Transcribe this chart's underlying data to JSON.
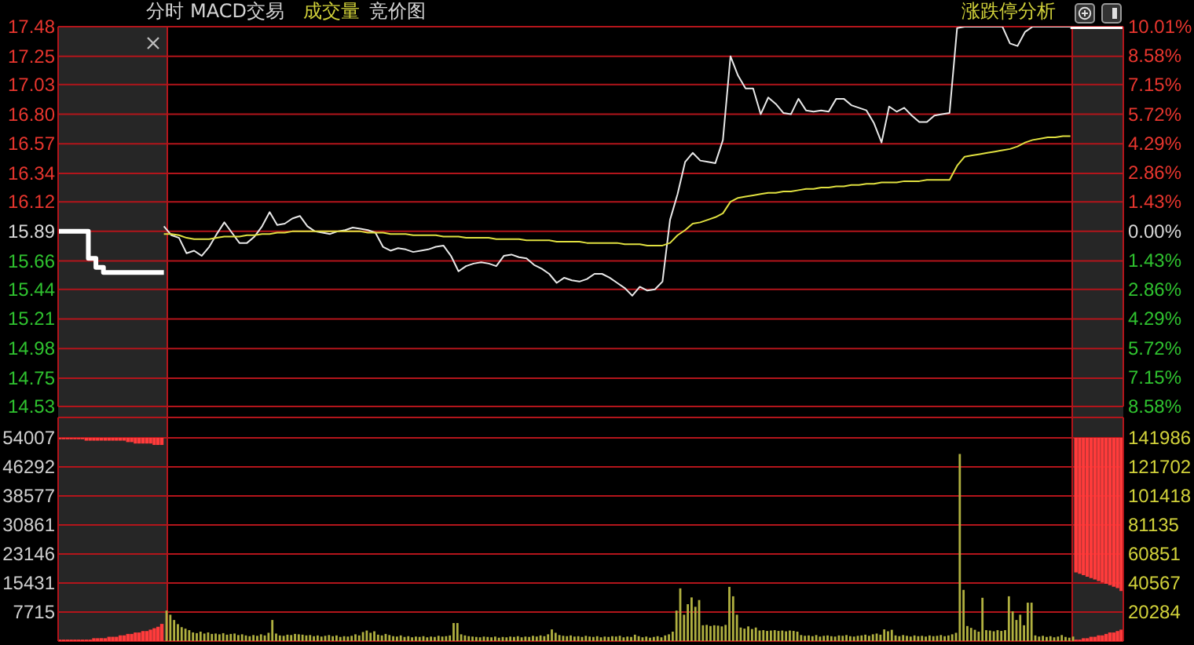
{
  "chart_data": [
    {
      "type": "line",
      "annotations": [
        "分时",
        "MACD交易",
        "成交量",
        "竞价图",
        "涨跌停分析"
      ],
      "categories": [
        null,
        null,
        null,
        null,
        null,
        null,
        null,
        null,
        null,
        null,
        null,
        null,
        null,
        null,
        null,
        null,
        null,
        null,
        null,
        null,
        null,
        null,
        null,
        null,
        null,
        null,
        null,
        null,
        null,
        null,
        null,
        null,
        null,
        null,
        null,
        null,
        null,
        null,
        null,
        null,
        null,
        null,
        null,
        null,
        null,
        null,
        null,
        null,
        null,
        null,
        null,
        null,
        null,
        null,
        null,
        null,
        null,
        null,
        null,
        null,
        null,
        null,
        null,
        null,
        null,
        null,
        null,
        null,
        null,
        null,
        null,
        null,
        null,
        null,
        null,
        null,
        null,
        null,
        null,
        null,
        null,
        null,
        null,
        null,
        null,
        null,
        null,
        null,
        null,
        null,
        null,
        null,
        null,
        null,
        null,
        null,
        null,
        null,
        null,
        null,
        null,
        null,
        null,
        null,
        null,
        null,
        null,
        null,
        null,
        null,
        null,
        null,
        null,
        null,
        null,
        null,
        null,
        null,
        null,
        null,
        null,
        null,
        null,
        null,
        null,
        null,
        null,
        null,
        null,
        null,
        null,
        null,
        null,
        null,
        null,
        null,
        null,
        null,
        null,
        null,
        null,
        null
      ],
      "ylim": [
        14.53,
        17.48
      ],
      "yticks": [
        14.53,
        14.75,
        14.98,
        15.21,
        15.44,
        15.66,
        15.89,
        16.12,
        16.34,
        16.57,
        {
          "value": 16.8,
          "label": "16.80"
        },
        17.03,
        17.25,
        17.48
      ],
      "y2lim": [
        -8.58,
        10.01
      ],
      "y2ticks": [
        {
          "value": -8.58,
          "label": "8.58%"
        },
        {
          "value": -7.15,
          "label": "7.15%"
        },
        {
          "value": -5.72,
          "label": "5.72%"
        },
        {
          "value": -4.29,
          "label": "4.29%"
        },
        {
          "value": -2.86,
          "label": "2.86%"
        },
        {
          "value": -1.43,
          "label": "1.43%"
        },
        {
          "value": 0,
          "label": "0.00%"
        },
        {
          "value": 1.43,
          "label": "1.43%"
        },
        {
          "value": 2.86,
          "label": "2.86%"
        },
        {
          "value": 4.29,
          "label": "4.29%"
        },
        {
          "value": 5.72,
          "label": "5.72%"
        },
        {
          "value": 7.15,
          "label": "7.15%"
        },
        {
          "value": 8.58,
          "label": "8.58%"
        },
        {
          "value": 10.01,
          "label": "10.01%"
        }
      ],
      "grid": "y",
      "tick_labels": "y",
      "series": [
        {
          "color": "#e8e8e8",
          "values": [
            null,
            null,
            null,
            null,
            null,
            null,
            null,
            null,
            null,
            null,
            null,
            null,
            null,
            null,
            15.93,
            15.86,
            15.84,
            15.72,
            15.74,
            15.7,
            15.77,
            15.87,
            15.96,
            15.88,
            15.8,
            15.8,
            15.85,
            15.93,
            16.04,
            15.94,
            15.95,
            15.99,
            16.01,
            15.93,
            15.89,
            15.88,
            15.87,
            15.89,
            15.9,
            15.92,
            15.91,
            15.9,
            15.88,
            15.77,
            15.74,
            15.76,
            15.75,
            15.73,
            15.74,
            15.75,
            15.77,
            15.78,
            15.7,
            15.58,
            15.62,
            15.64,
            15.65,
            15.64,
            15.62,
            15.7,
            15.71,
            15.69,
            15.68,
            15.63,
            15.6,
            15.56,
            15.49,
            15.53,
            15.51,
            15.5,
            15.52,
            15.56,
            15.56,
            15.53,
            15.49,
            15.45,
            15.39,
            15.46,
            15.43,
            15.44,
            15.5,
            15.98,
            16.18,
            16.43,
            16.5,
            16.44,
            16.43,
            16.42,
            16.6,
            17.25,
            17.1,
            17.0,
            17.0,
            16.8,
            16.93,
            16.88,
            16.81,
            16.8,
            16.92,
            16.83,
            16.82,
            16.83,
            16.82,
            16.92,
            16.92,
            16.87,
            16.85,
            16.83,
            16.73,
            16.58,
            16.86,
            16.82,
            16.85,
            16.79,
            16.74,
            16.74,
            16.79,
            16.8,
            16.81,
            17.47,
            17.48,
            17.48,
            17.48,
            17.48,
            17.48,
            17.48,
            17.35,
            17.33,
            17.44,
            17.48,
            17.48,
            17.48,
            17.48,
            17.48,
            17.48,
            null,
            null,
            null,
            null,
            null,
            null,
            null
          ]
        },
        {
          "color": "#e0e040",
          "values": [
            null,
            null,
            null,
            null,
            null,
            null,
            null,
            null,
            null,
            null,
            null,
            null,
            null,
            null,
            15.87,
            15.87,
            15.86,
            15.84,
            15.83,
            15.83,
            15.83,
            15.84,
            15.85,
            15.85,
            15.85,
            15.86,
            15.86,
            15.87,
            15.87,
            15.88,
            15.88,
            15.89,
            15.89,
            15.89,
            15.89,
            15.89,
            15.89,
            15.89,
            15.89,
            15.89,
            15.89,
            15.88,
            15.88,
            15.88,
            15.87,
            15.87,
            15.87,
            15.86,
            15.86,
            15.86,
            15.86,
            15.85,
            15.85,
            15.85,
            15.84,
            15.84,
            15.84,
            15.84,
            15.83,
            15.83,
            15.83,
            15.83,
            15.82,
            15.82,
            15.82,
            15.82,
            15.81,
            15.81,
            15.81,
            15.81,
            15.8,
            15.8,
            15.8,
            15.8,
            15.8,
            15.79,
            15.79,
            15.79,
            15.78,
            15.78,
            15.78,
            15.8,
            15.86,
            15.9,
            15.95,
            15.96,
            15.98,
            16.0,
            16.03,
            16.12,
            16.15,
            16.16,
            16.17,
            16.18,
            16.19,
            16.19,
            16.2,
            16.2,
            16.21,
            16.22,
            16.22,
            16.23,
            16.23,
            16.24,
            16.24,
            16.25,
            16.25,
            16.26,
            16.26,
            16.27,
            16.27,
            16.27,
            16.28,
            16.28,
            16.28,
            16.29,
            16.29,
            16.29,
            16.29,
            16.4,
            16.47,
            16.48,
            16.49,
            16.5,
            16.51,
            16.52,
            16.53,
            16.55,
            16.58,
            16.6,
            16.61,
            16.62,
            16.62,
            16.63,
            16.63,
            null,
            null,
            null,
            null,
            null,
            null,
            null
          ]
        },
        {
          "type": "step",
          "color": "#ffffff",
          "values": [
            15.89,
            15.89,
            15.89,
            15.89,
            15.68,
            15.61,
            15.57,
            15.57,
            15.57,
            15.57,
            15.57,
            15.57,
            15.57,
            15.57,
            15.57,
            null,
            null,
            null,
            null,
            null,
            null,
            null,
            null,
            null,
            null,
            null,
            null,
            null,
            null,
            null,
            null,
            null,
            null,
            null,
            null,
            null,
            null,
            null,
            null,
            null,
            null,
            null,
            null,
            null,
            null,
            null,
            null,
            null,
            null,
            null,
            null,
            null,
            null,
            null,
            null,
            null,
            null,
            null,
            null,
            null,
            null,
            null,
            null,
            null,
            null,
            null,
            null,
            null,
            null,
            null,
            null,
            null,
            null,
            null,
            null,
            null,
            null,
            null,
            null,
            null,
            null,
            null,
            null,
            null,
            null,
            null,
            null,
            null,
            null,
            null,
            null,
            null,
            null,
            null,
            null,
            null,
            null,
            null,
            null,
            null,
            null,
            null,
            null,
            null,
            null,
            null,
            null,
            null,
            null,
            null,
            null,
            null,
            null,
            null,
            null,
            null,
            null,
            null,
            null,
            null,
            null,
            null,
            null,
            null,
            null,
            null,
            null,
            null,
            null,
            null,
            null,
            null,
            null,
            null,
            null,
            null,
            null,
            null,
            null,
            null,
            null,
            null
          ]
        },
        {
          "type": "step",
          "color": "#ffffff",
          "values": [
            null,
            null,
            null,
            null,
            null,
            null,
            null,
            null,
            null,
            null,
            null,
            null,
            null,
            null,
            null,
            null,
            null,
            null,
            null,
            null,
            null,
            null,
            null,
            null,
            null,
            null,
            null,
            null,
            null,
            null,
            null,
            null,
            null,
            null,
            null,
            null,
            null,
            null,
            null,
            null,
            null,
            null,
            null,
            null,
            null,
            null,
            null,
            null,
            null,
            null,
            null,
            null,
            null,
            null,
            null,
            null,
            null,
            null,
            null,
            null,
            null,
            null,
            null,
            null,
            null,
            null,
            null,
            null,
            null,
            null,
            null,
            null,
            null,
            null,
            null,
            null,
            null,
            null,
            null,
            null,
            null,
            null,
            null,
            null,
            null,
            null,
            null,
            null,
            null,
            null,
            null,
            null,
            null,
            null,
            null,
            null,
            null,
            null,
            null,
            null,
            null,
            null,
            null,
            null,
            null,
            null,
            null,
            null,
            null,
            null,
            null,
            null,
            null,
            null,
            null,
            null,
            null,
            null,
            null,
            null,
            null,
            null,
            null,
            null,
            null,
            null,
            null,
            null,
            null,
            null,
            null,
            null,
            null,
            null,
            17.48,
            17.48,
            17.48,
            17.48,
            17.48,
            17.48,
            17.48,
            17.48
          ]
        }
      ]
    },
    {
      "type": "bar",
      "categories": [
        null,
        null,
        null,
        null,
        null,
        null,
        null,
        null,
        null,
        null,
        null,
        null,
        null,
        null,
        null,
        null,
        null,
        null,
        null,
        null,
        null,
        null,
        null,
        null,
        null,
        null,
        null,
        null,
        null,
        null,
        null,
        null,
        null,
        null,
        null,
        null,
        null,
        null,
        null,
        null,
        null,
        null,
        null,
        null,
        null,
        null,
        null,
        null,
        null,
        null,
        null,
        null,
        null,
        null,
        null,
        null,
        null,
        null,
        null,
        null,
        null,
        null,
        null,
        null,
        null,
        null,
        null,
        null,
        null,
        null,
        null,
        null,
        null,
        null,
        null,
        null,
        null,
        null,
        null,
        null,
        null,
        null,
        null,
        null,
        null,
        null,
        null,
        null,
        null,
        null,
        null,
        null,
        null,
        null,
        null,
        null,
        null,
        null,
        null,
        null,
        null,
        null,
        null,
        null,
        null,
        null,
        null,
        null,
        null,
        null,
        null,
        null,
        null,
        null,
        null,
        null,
        null,
        null,
        null,
        null,
        null,
        null,
        null,
        null,
        null,
        null,
        null,
        null,
        null,
        null,
        null,
        null,
        null,
        null,
        null,
        null,
        null,
        null,
        null,
        null,
        null,
        null,
        null,
        null,
        null,
        null,
        null,
        null,
        null,
        null,
        null,
        null,
        null,
        null,
        null,
        null,
        null,
        null,
        null,
        null,
        null,
        null,
        null,
        null,
        null,
        null,
        null,
        null,
        null,
        null,
        null,
        null,
        null,
        null,
        null,
        null,
        null,
        null,
        null,
        null,
        null,
        null,
        null,
        null,
        null,
        null,
        null,
        null,
        null,
        null,
        null,
        null,
        null,
        null,
        null,
        null,
        null,
        null,
        null,
        null,
        null,
        null,
        null,
        null,
        null,
        null,
        null,
        null,
        null,
        null,
        null,
        null,
        null,
        null,
        null,
        null,
        null,
        null,
        null,
        null,
        null,
        null,
        null,
        null,
        null,
        null,
        null,
        null,
        null,
        null,
        null,
        null,
        null,
        null,
        null,
        null,
        null,
        null,
        null,
        null,
        null,
        null,
        null,
        null,
        null,
        null,
        null,
        null,
        null,
        null,
        null,
        null,
        null,
        null,
        null,
        null,
        null,
        null,
        null,
        null,
        null,
        null,
        null,
        null,
        null,
        null,
        null,
        null,
        null,
        null,
        null,
        null,
        null,
        null,
        null,
        null,
        null,
        null,
        null,
        null,
        null,
        null
      ],
      "ylim": [
        0,
        59400
      ],
      "yticks": [
        7715,
        15431,
        23146,
        30861,
        38577,
        46292,
        54007
      ],
      "y2lim": [
        0,
        156200
      ],
      "y2ticks": [
        20284,
        40567,
        60851,
        81135,
        101418,
        121702,
        141986
      ],
      "grid": "y",
      "tick_labels": "y",
      "series": [
        {
          "color": "#b0b040",
          "values": [
            null,
            null,
            null,
            null,
            null,
            null,
            null,
            null,
            null,
            null,
            null,
            null,
            null,
            null,
            null,
            null,
            null,
            null,
            null,
            null,
            null,
            null,
            null,
            null,
            null,
            null,
            null,
            null,
            8100,
            7000,
            5600,
            4500,
            3700,
            3300,
            2900,
            2300,
            2100,
            2500,
            2000,
            2300,
            1900,
            2000,
            1800,
            2100,
            1700,
            1900,
            2000,
            1600,
            1800,
            1500,
            1300,
            1600,
            1400,
            1800,
            1500,
            2200,
            5600,
            2000,
            1500,
            1400,
            1700,
            1600,
            1900,
            1800,
            1700,
            1500,
            1600,
            1300,
            1500,
            1200,
            1400,
            1600,
            1300,
            1500,
            1100,
            1300,
            1200,
            1400,
            1800,
            1500,
            2400,
            2800,
            2200,
            2600,
            1700,
            1500,
            1900,
            1600,
            1300,
            1200,
            1500,
            1100,
            1300,
            1000,
            1200,
            1100,
            1300,
            1000,
            1200,
            1100,
            1400,
            1200,
            1300,
            1500,
            4800,
            4800,
            1800,
            1500,
            1300,
            1200,
            1100,
            1000,
            1200,
            1100,
            1000,
            1200,
            900,
            1100,
            1000,
            1200,
            1100,
            1300,
            1000,
            1200,
            1100,
            1400,
            1200,
            1500,
            1300,
            1800,
            3100,
            2200,
            1600,
            1400,
            1300,
            1500,
            1200,
            1300,
            1100,
            1400,
            1200,
            1100,
            1300,
            1000,
            1200,
            1100,
            1300,
            1200,
            1400,
            1000,
            1200,
            1100,
            1700,
            1300,
            1000,
            1200,
            900,
            1100,
            1300,
            1000,
            1500,
            1800,
            2500,
            8100,
            14000,
            7000,
            9800,
            11600,
            9100,
            10900,
            4200,
            4300,
            4000,
            4200,
            4100,
            3900,
            4300,
            14400,
            11900,
            7000,
            3600,
            3300,
            3900,
            3200,
            3600,
            2800,
            2900,
            2700,
            2800,
            2900,
            2700,
            2800,
            2600,
            2800,
            2700,
            2500,
            1600,
            1400,
            1500,
            1300,
            1600,
            1200,
            1400,
            1500,
            1300,
            1200,
            1500,
            1400,
            1600,
            1300,
            1200,
            1400,
            1500,
            1700,
            1400,
            1800,
            2000,
            1700,
            3100,
            2600,
            3000,
            1500,
            1300,
            1600,
            1400,
            1200,
            1500,
            1300,
            1400,
            1200,
            1500,
            1300,
            1400,
            1600,
            1300,
            1500,
            1800,
            2200,
            49700,
            13600,
            4000,
            3500,
            3000,
            2500,
            11500,
            2900,
            2800,
            2600,
            2900,
            2700,
            2900,
            11900,
            7900,
            5600,
            7000,
            4200,
            10200,
            10200,
            1500,
            1200,
            1400,
            1100,
            1300,
            1000,
            1200,
            1600,
            1100,
            900,
            1200,
            null,
            null,
            null,
            null,
            null,
            null,
            null,
            null,
            null,
            null,
            null,
            null,
            null
          ]
        },
        {
          "color": "#ff3b3b",
          "axis": "y2",
          "values": [
            1000,
            1000,
            1000,
            1000,
            1000,
            1000,
            1000,
            1000,
            1000,
            2000,
            2000,
            2000,
            2000,
            3000,
            3000,
            3000,
            4000,
            4000,
            5000,
            5000,
            6000,
            6000,
            7000,
            7000,
            8000,
            9000,
            10000,
            12000,
            null,
            null,
            null,
            null,
            null,
            null,
            null,
            null,
            null,
            null,
            null,
            null,
            null,
            null,
            null,
            null,
            null,
            null,
            null,
            null,
            null,
            null,
            null,
            null,
            null,
            null,
            null,
            null,
            null,
            null,
            null,
            null,
            null,
            null,
            null,
            null,
            null,
            null,
            null,
            null,
            null,
            null,
            null,
            null,
            null,
            null,
            null,
            null,
            null,
            null,
            null,
            null,
            null,
            null,
            null,
            null,
            null,
            null,
            null,
            null,
            null,
            null,
            null,
            null,
            null,
            null,
            null,
            null,
            null,
            null,
            null,
            null,
            null,
            null,
            null,
            null,
            null,
            null,
            null,
            null,
            null,
            null,
            null,
            null,
            null,
            null,
            null,
            null,
            null,
            null,
            null,
            null,
            null,
            null,
            null,
            null,
            null,
            null,
            null,
            null,
            null,
            null,
            null,
            null,
            null,
            null,
            null,
            null,
            null,
            null,
            null,
            null,
            null,
            null,
            null,
            null,
            null,
            null,
            null,
            null,
            null,
            null,
            null,
            null,
            null,
            null,
            null,
            null,
            null,
            null,
            null,
            null,
            null,
            null,
            null,
            null,
            null,
            null,
            null,
            null,
            null,
            null,
            null,
            null,
            null,
            null,
            null,
            null,
            null,
            null,
            null,
            null,
            null,
            null,
            null,
            null,
            null,
            null,
            null,
            null,
            null,
            null,
            null,
            null,
            null,
            null,
            null,
            null,
            null,
            null,
            null,
            null,
            null,
            null,
            null,
            null,
            null,
            null,
            null,
            null,
            null,
            null,
            null,
            null,
            null,
            null,
            null,
            null,
            null,
            null,
            null,
            null,
            null,
            null,
            null,
            null,
            null,
            null,
            null,
            null,
            null,
            null,
            null,
            null,
            null,
            null,
            null,
            null,
            null,
            null,
            null,
            null,
            null,
            null,
            null,
            null,
            null,
            null,
            null,
            null,
            null,
            null,
            null,
            null,
            null,
            null,
            null,
            null,
            null,
            null,
            null,
            null,
            null,
            null,
            null,
            null,
            null,
            null,
            null,
            null,
            null,
            1000,
            1000,
            2000,
            2000,
            3000,
            3000,
            4000,
            4000,
            5000,
            6000,
            6000,
            7000,
            8000
          ]
        },
        {
          "color": "#ff3b3b",
          "axis": "y2",
          "base": [
            140986,
            140986,
            140986,
            140986,
            140986,
            140986,
            140986,
            139986,
            139986,
            139986,
            139986,
            139986,
            139986,
            139986,
            139986,
            139986,
            139986,
            139986,
            138986,
            138986,
            137986,
            137986,
            137986,
            137986,
            137986,
            136986,
            136986,
            136986,
            null,
            null,
            null,
            null,
            null,
            null,
            null,
            null,
            null,
            null,
            null,
            null,
            null,
            null,
            null,
            null,
            null,
            null,
            null,
            null,
            null,
            null,
            null,
            null,
            null,
            null,
            null,
            null,
            null,
            null,
            null,
            null,
            null,
            null,
            null,
            null,
            null,
            null,
            null,
            null,
            null,
            null,
            null,
            null,
            null,
            null,
            null,
            null,
            null,
            null,
            null,
            null,
            null,
            null,
            null,
            null,
            null,
            null,
            null,
            null,
            null,
            null,
            null,
            null,
            null,
            null,
            null,
            null,
            null,
            null,
            null,
            null,
            null,
            null,
            null,
            null,
            null,
            null,
            null,
            null,
            null,
            null,
            null,
            null,
            null,
            null,
            null,
            null,
            null,
            null,
            null,
            null,
            null,
            null,
            null,
            null,
            null,
            null,
            null,
            null,
            null,
            null,
            null,
            null,
            null,
            null,
            null,
            null,
            null,
            null,
            null,
            null,
            null,
            null,
            null,
            null,
            null,
            null,
            null,
            null,
            null,
            null,
            null,
            null,
            null,
            null,
            null,
            null,
            null,
            null,
            null,
            null,
            null,
            null,
            null,
            null,
            null,
            null,
            null,
            null,
            null,
            null,
            null,
            null,
            null,
            null,
            null,
            null,
            null,
            null,
            null,
            null,
            null,
            null,
            null,
            null,
            null,
            null,
            null,
            null,
            null,
            null,
            null,
            null,
            null,
            null,
            null,
            null,
            null,
            null,
            null,
            null,
            null,
            null,
            null,
            null,
            null,
            null,
            null,
            null,
            null,
            null,
            null,
            null,
            null,
            null,
            null,
            null,
            null,
            null,
            null,
            null,
            null,
            null,
            null,
            null,
            null,
            null,
            null,
            null,
            null,
            null,
            null,
            null,
            null,
            null,
            null,
            null,
            null,
            null,
            null,
            null,
            null,
            null,
            null,
            null,
            null,
            null,
            null,
            null,
            null,
            null,
            null,
            null,
            null,
            null,
            null,
            null,
            null,
            null,
            null,
            null,
            null,
            null,
            null,
            null,
            null,
            null,
            null,
            null,
            null,
            47986,
            46986,
            45986,
            44986,
            43986,
            42986,
            41986,
            40986,
            39986,
            38986,
            37986,
            36986,
            34986
          ],
          "values": [
            1000,
            1000,
            1000,
            1000,
            1000,
            1000,
            1000,
            2000,
            2000,
            2000,
            2000,
            2000,
            2000,
            2000,
            2000,
            2000,
            2000,
            2000,
            3000,
            3000,
            4000,
            4000,
            4000,
            4000,
            4000,
            5000,
            5000,
            5000,
            null,
            null,
            null,
            null,
            null,
            null,
            null,
            null,
            null,
            null,
            null,
            null,
            null,
            null,
            null,
            null,
            null,
            null,
            null,
            null,
            null,
            null,
            null,
            null,
            null,
            null,
            null,
            null,
            null,
            null,
            null,
            null,
            null,
            null,
            null,
            null,
            null,
            null,
            null,
            null,
            null,
            null,
            null,
            null,
            null,
            null,
            null,
            null,
            null,
            null,
            null,
            null,
            null,
            null,
            null,
            null,
            null,
            null,
            null,
            null,
            null,
            null,
            null,
            null,
            null,
            null,
            null,
            null,
            null,
            null,
            null,
            null,
            null,
            null,
            null,
            null,
            null,
            null,
            null,
            null,
            null,
            null,
            null,
            null,
            null,
            null,
            null,
            null,
            null,
            null,
            null,
            null,
            null,
            null,
            null,
            null,
            null,
            null,
            null,
            null,
            null,
            null,
            null,
            null,
            null,
            null,
            null,
            null,
            null,
            null,
            null,
            null,
            null,
            null,
            null,
            null,
            null,
            null,
            null,
            null,
            null,
            null,
            null,
            null,
            null,
            null,
            null,
            null,
            null,
            null,
            null,
            null,
            null,
            null,
            null,
            null,
            null,
            null,
            null,
            null,
            null,
            null,
            null,
            null,
            null,
            null,
            null,
            null,
            null,
            null,
            null,
            null,
            null,
            null,
            null,
            null,
            null,
            null,
            null,
            null,
            null,
            null,
            null,
            null,
            null,
            null,
            null,
            null,
            null,
            null,
            null,
            null,
            null,
            null,
            null,
            null,
            null,
            null,
            null,
            null,
            null,
            null,
            null,
            null,
            null,
            null,
            null,
            null,
            null,
            null,
            null,
            null,
            null,
            null,
            null,
            null,
            null,
            null,
            null,
            null,
            null,
            null,
            null,
            null,
            null,
            null,
            null,
            null,
            null,
            null,
            null,
            null,
            null,
            null,
            null,
            null,
            null,
            null,
            null,
            null,
            null,
            null,
            null,
            null,
            null,
            null,
            null,
            null,
            null,
            null,
            null,
            null,
            null,
            null,
            null,
            null,
            null,
            null,
            null,
            null,
            null,
            94000,
            95000,
            96000,
            97000,
            98000,
            99000,
            100000,
            101000,
            102000,
            103000,
            104000,
            105000,
            107000
          ]
        }
      ]
    }
  ]
}
